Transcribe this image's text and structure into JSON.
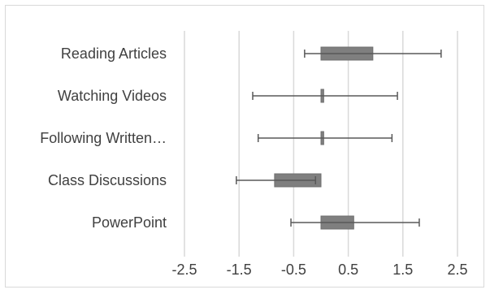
{
  "chart_data": {
    "type": "bar",
    "orientation": "horizontal",
    "categories": [
      "Reading Articles",
      "Watching Videos",
      "Following Written…",
      "Class Discussions",
      "PowerPoint"
    ],
    "values": [
      0.95,
      0.05,
      0.05,
      -0.85,
      0.6
    ],
    "error_low": [
      -0.3,
      -1.25,
      -1.15,
      -1.55,
      -0.55
    ],
    "error_high": [
      2.2,
      1.4,
      1.3,
      -0.1,
      1.8
    ],
    "xlim": [
      -2.5,
      2.5
    ],
    "xticks": [
      "-2.5",
      "-1.5",
      "-0.5",
      "0.5",
      "1.5",
      "2.5"
    ],
    "grid": true,
    "legend": "none",
    "title": "",
    "xlabel": "",
    "ylabel": "",
    "colors": {
      "bar": "#7f7f7f",
      "error_bar": "#595959",
      "grid": "#d9d9d9",
      "text": "#404040"
    }
  }
}
